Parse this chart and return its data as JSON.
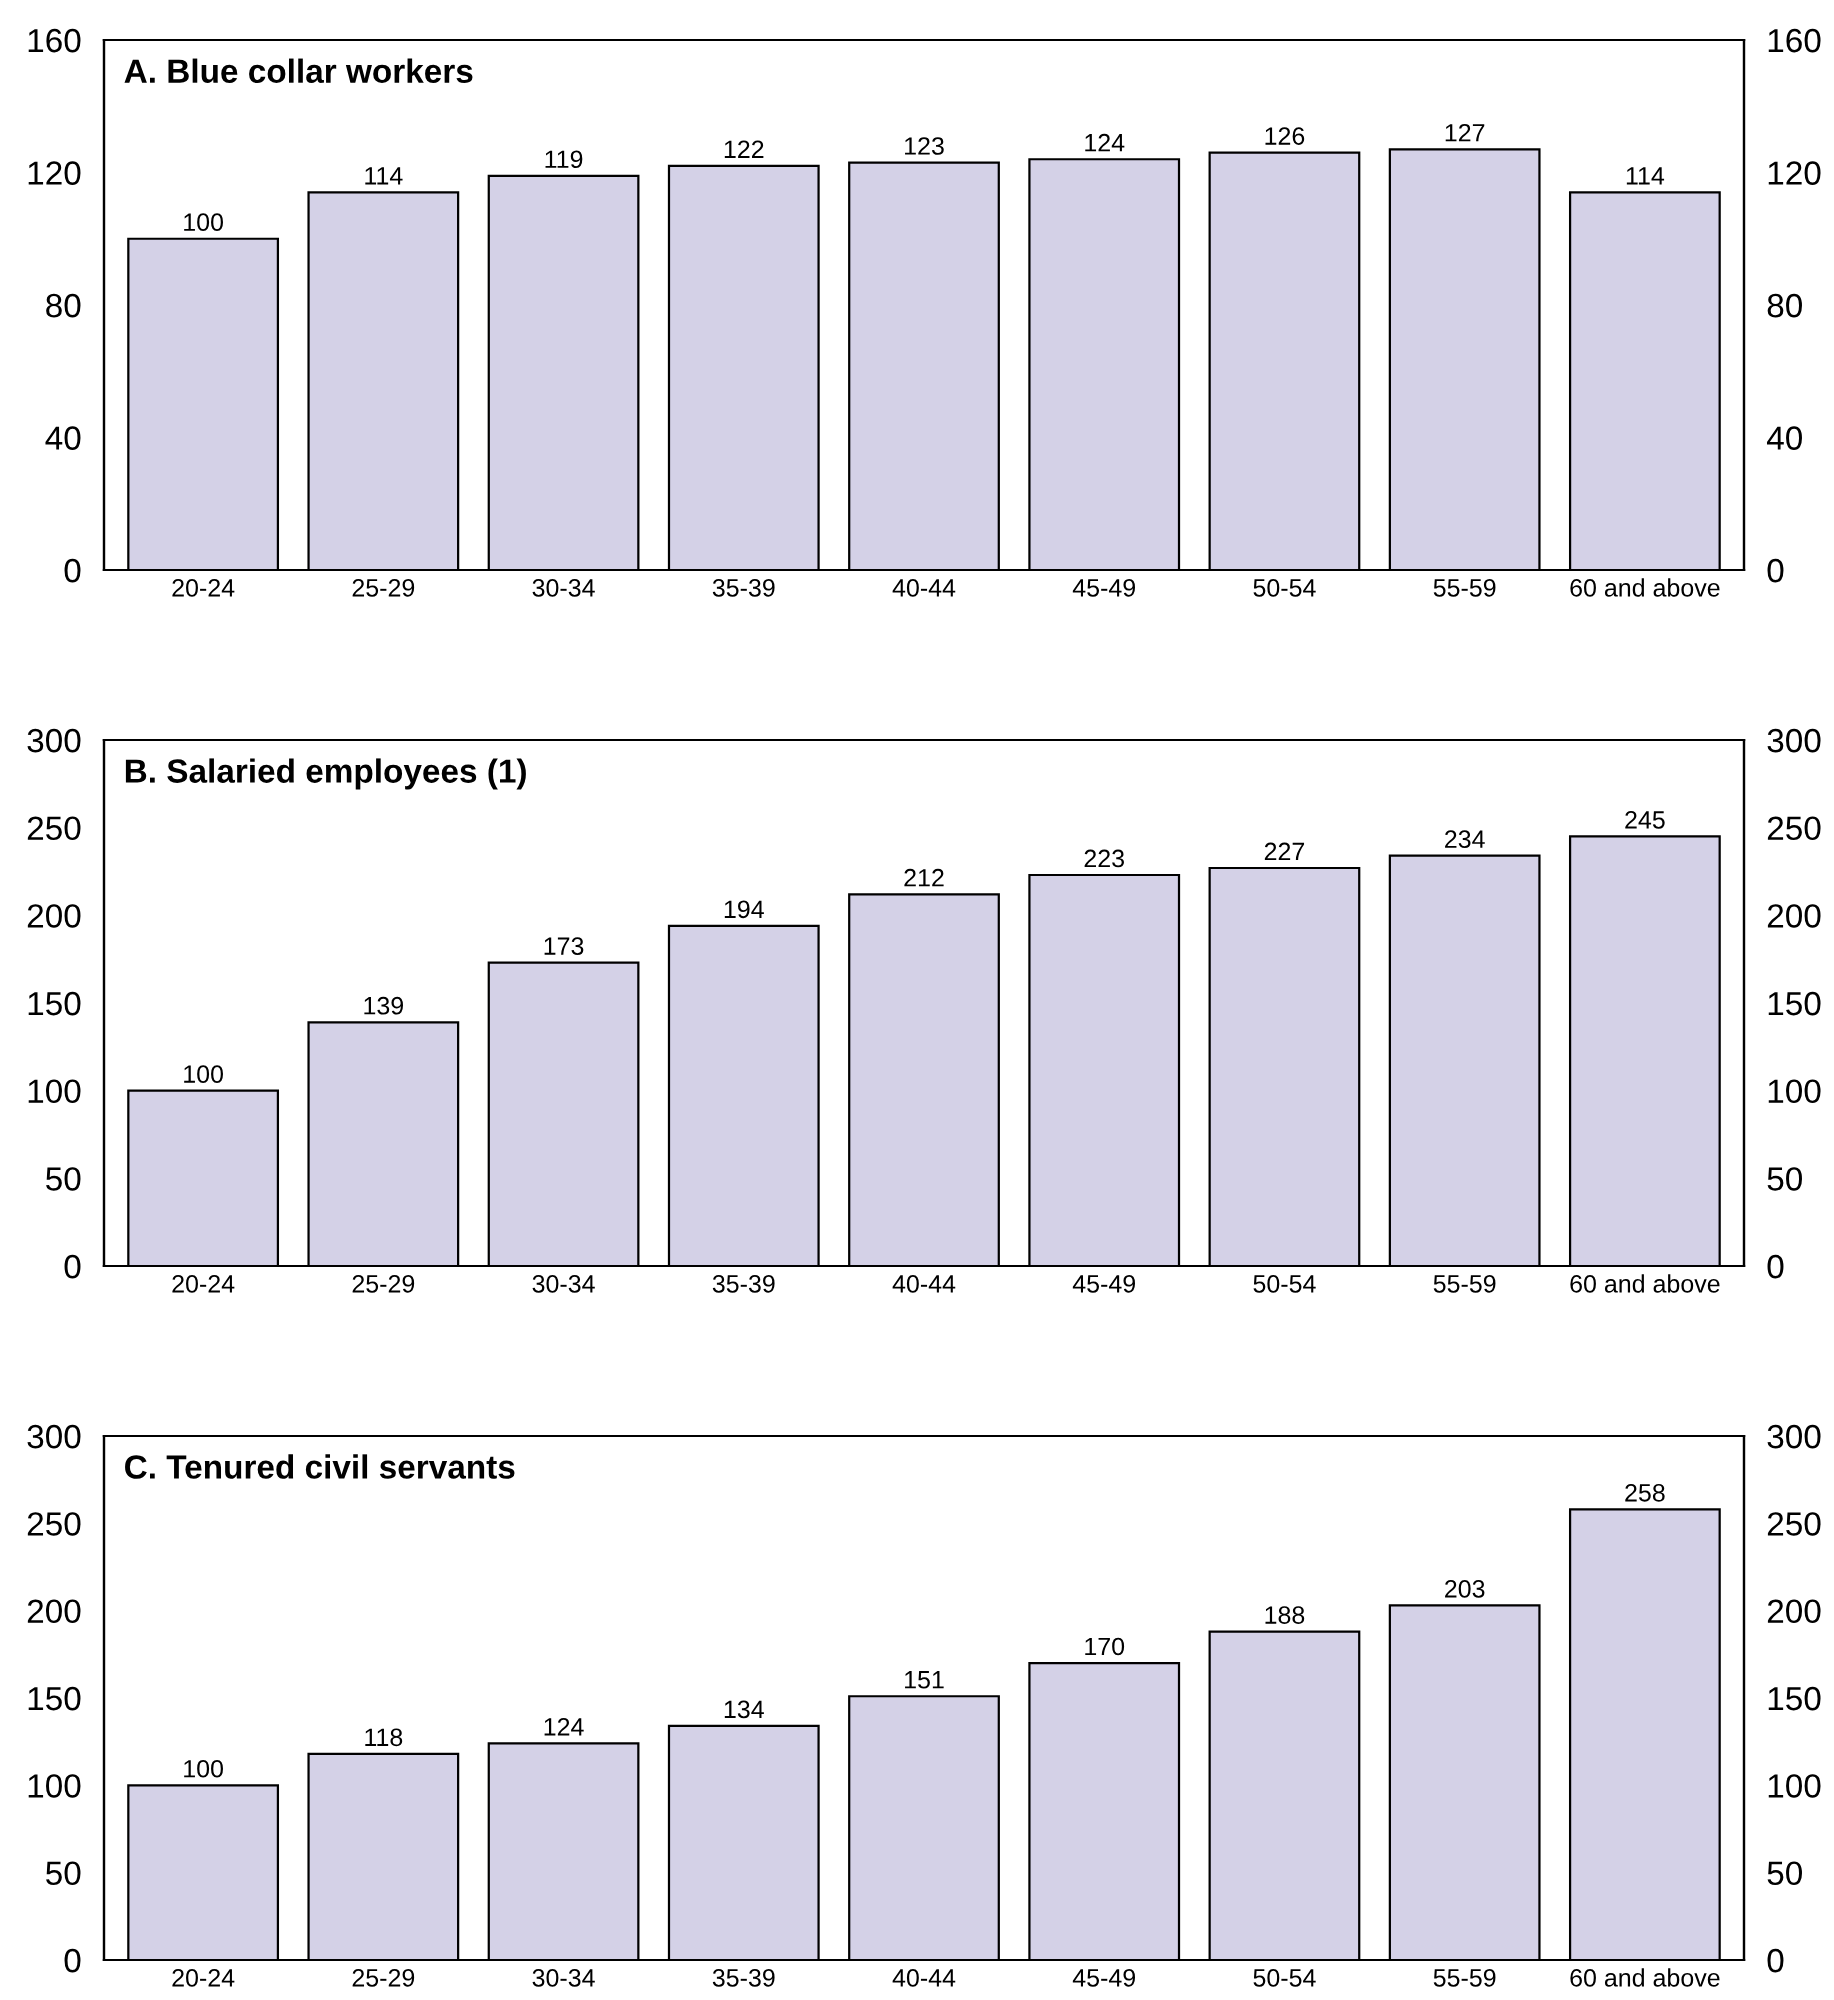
{
  "chart_data": [
    {
      "type": "bar",
      "title": "A. Blue collar workers",
      "categories": [
        "20-24",
        "25-29",
        "30-34",
        "35-39",
        "40-44",
        "45-49",
        "50-54",
        "55-59",
        "60 and above"
      ],
      "values": [
        100,
        114,
        119,
        122,
        123,
        124,
        126,
        127,
        114
      ],
      "color": "#d4d1e7",
      "data_labels": true,
      "ylim": [
        0,
        160
      ],
      "yticks": [
        0,
        40,
        80,
        120,
        160
      ],
      "y2lim": [
        0,
        160
      ],
      "y2ticks": [
        0,
        40,
        80,
        120,
        160
      ],
      "grid": false,
      "legend": false
    },
    {
      "type": "bar",
      "title": "B. Salaried employees (1)",
      "categories": [
        "20-24",
        "25-29",
        "30-34",
        "35-39",
        "40-44",
        "45-49",
        "50-54",
        "55-59",
        "60 and above"
      ],
      "values": [
        100,
        139,
        173,
        194,
        212,
        223,
        227,
        234,
        245
      ],
      "color": "#d4d1e7",
      "data_labels": true,
      "ylim": [
        0,
        300
      ],
      "yticks": [
        0,
        50,
        100,
        150,
        200,
        250,
        300
      ],
      "y2lim": [
        0,
        300
      ],
      "y2ticks": [
        0,
        50,
        100,
        150,
        200,
        250,
        300
      ],
      "grid": false,
      "legend": false
    },
    {
      "type": "bar",
      "title": "C. Tenured civil servants",
      "categories": [
        "20-24",
        "25-29",
        "30-34",
        "35-39",
        "40-44",
        "45-49",
        "50-54",
        "55-59",
        "60 and above"
      ],
      "values": [
        100,
        118,
        124,
        134,
        151,
        170,
        188,
        203,
        258
      ],
      "color": "#d4d1e7",
      "data_labels": true,
      "ylim": [
        0,
        300
      ],
      "yticks": [
        0,
        50,
        100,
        150,
        200,
        250,
        300
      ],
      "y2lim": [
        0,
        300
      ],
      "y2ticks": [
        0,
        50,
        100,
        150,
        200,
        250,
        300
      ],
      "grid": false,
      "legend": false
    }
  ]
}
